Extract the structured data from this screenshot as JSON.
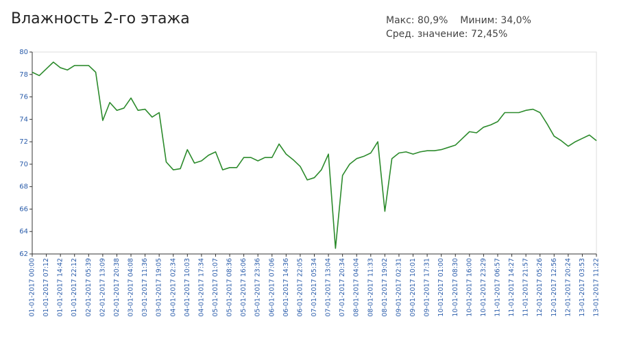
{
  "chart_data": {
    "type": "line",
    "title": "Влажность 2-го этажа",
    "annotations": [
      "Макс: 80,9%    Миним: 34,0%",
      "Сред. значение: 72,45%"
    ],
    "categories": [
      "01-01-2017 00:00",
      null,
      "01-01-2017 07:12",
      null,
      "01-01-2017 14:42",
      null,
      "01-01-2017 22:12",
      null,
      "02-01-2017 05:39",
      null,
      "02-01-2017 13:09",
      null,
      "02-01-2017 20:38",
      null,
      "03-01-2017 04:08",
      null,
      "03-01-2017 11:36",
      null,
      "03-01-2017 19:05",
      null,
      "04-01-2017 02:34",
      null,
      "04-01-2017 10:03",
      null,
      "04-01-2017 17:34",
      null,
      "05-01-2017 01:07",
      null,
      "05-01-2017 08:36",
      null,
      "05-01-2017 16:06",
      null,
      "05-01-2017 23:36",
      null,
      "06-01-2017 07:06",
      null,
      "06-01-2017 14:36",
      null,
      "06-01-2017 22:05",
      null,
      "07-01-2017 05:34",
      null,
      "07-01-2017 13:04",
      null,
      "07-01-2017 20:34",
      null,
      "08-01-2017 04:04",
      null,
      "08-01-2017 11:33",
      null,
      "08-01-2017 19:02",
      null,
      "09-01-2017 02:31",
      null,
      "09-01-2017 10:01",
      null,
      "09-01-2017 17:31",
      null,
      "10-01-2017 01:00",
      null,
      "10-01-2017 08:30",
      null,
      "10-01-2017 16:00",
      null,
      "10-01-2017 23:29",
      null,
      "11-01-2017 06:57",
      null,
      "11-01-2017 14:27",
      null,
      "11-01-2017 21:57",
      null,
      "12-01-2017 05:26",
      null,
      "12-01-2017 12:56",
      null,
      "12-01-2017 20:24",
      null,
      "13-01-2017 03:53",
      null,
      "13-01-2017 11:22"
    ],
    "series": [
      {
        "name": "Влажность",
        "color": "#2b8a2b",
        "values": [
          78.2,
          77.9,
          78.5,
          79.1,
          78.6,
          78.4,
          78.8,
          78.8,
          78.8,
          78.2,
          73.9,
          75.5,
          74.8,
          75.0,
          75.9,
          74.8,
          74.9,
          74.2,
          74.6,
          70.2,
          69.5,
          69.6,
          71.3,
          70.1,
          70.3,
          70.8,
          71.1,
          69.5,
          69.7,
          69.7,
          70.6,
          70.6,
          70.3,
          70.6,
          70.6,
          71.8,
          70.9,
          70.4,
          69.8,
          68.6,
          68.8,
          69.5,
          70.9,
          62.5,
          69.0,
          70.0,
          70.5,
          70.7,
          71.0,
          72.0,
          65.8,
          70.5,
          71.0,
          71.1,
          70.9,
          71.1,
          71.2,
          71.2,
          71.3,
          71.5,
          71.7,
          72.3,
          72.9,
          72.8,
          73.3,
          73.5,
          73.8,
          74.6,
          74.6,
          74.6,
          74.8,
          74.9,
          74.6,
          73.6,
          72.5,
          72.1,
          71.6,
          72.0,
          72.3,
          72.6,
          72.1
        ]
      }
    ],
    "ylim": [
      62,
      80
    ],
    "yticks": [
      62,
      64,
      66,
      68,
      70,
      72,
      74,
      76,
      78,
      80
    ],
    "grid": false
  }
}
